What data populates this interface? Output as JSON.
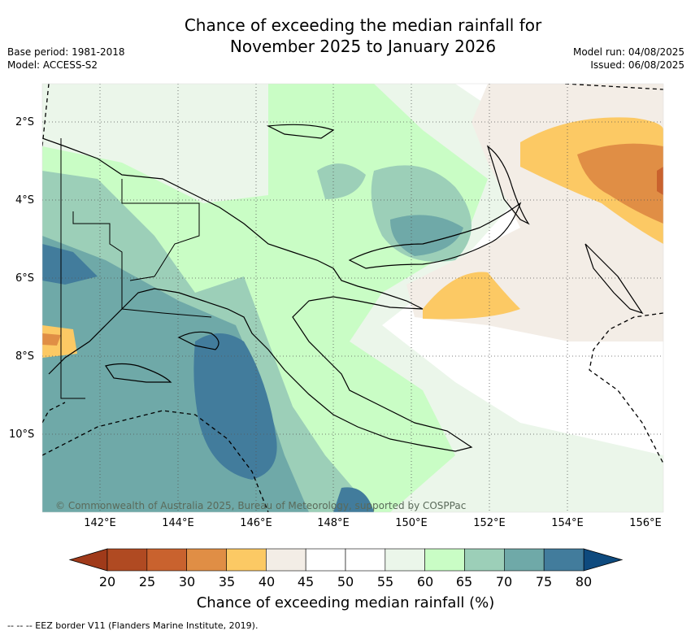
{
  "title_line1": "Chance of exceeding the median rainfall for",
  "title_line2": "November 2025 to January 2026",
  "base_period": "Base period: 1981-2018",
  "model": "Model: ACCESS-S2",
  "model_run": "Model run: 04/08/2025",
  "issued": "Issued: 06/08/2025",
  "lat_ticks": [
    "2°S",
    "4°S",
    "6°S",
    "8°S",
    "10°S"
  ],
  "lon_ticks": [
    "142°E",
    "144°E",
    "146°E",
    "148°E",
    "150°E",
    "152°E",
    "154°E",
    "156°E"
  ],
  "credit": "© Commonwealth of Australia 2025, Bureau of Meteorology, supported by COSPPac",
  "colorbar": {
    "labels": [
      "20",
      "25",
      "30",
      "35",
      "40",
      "45",
      "50",
      "55",
      "60",
      "65",
      "70",
      "75",
      "80"
    ],
    "colors": [
      "#b04a22",
      "#c9622e",
      "#e08e45",
      "#fcc964",
      "#f3ede6",
      "#ffffff",
      "#ffffff",
      "#ebf6ea",
      "#c9fdc5",
      "#9ccfb8",
      "#6fa9a8",
      "#427c9c",
      "#134b7c"
    ],
    "title": "Chance of exceeding median rainfall (%)"
  },
  "footer": "-- -- -- EEZ border V11 (Flanders Marine Institute, 2019)."
}
